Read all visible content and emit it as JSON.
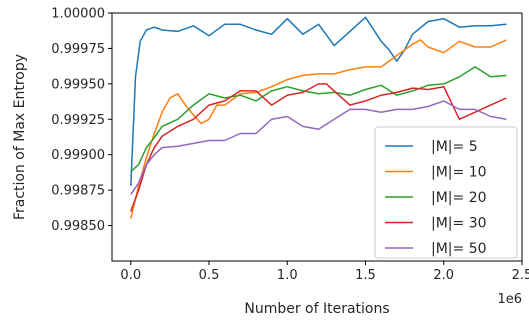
{
  "chart_data": {
    "type": "line",
    "title": "",
    "xlabel": "Number of Iterations",
    "ylabel": "Fraction of Max Entropy",
    "x_offset_label": "1e6",
    "xlim": [
      -0.12,
      2.5
    ],
    "ylim": [
      0.99825,
      1.0
    ],
    "xticks": [
      0.0,
      0.5,
      1.0,
      1.5,
      2.0,
      2.5
    ],
    "xtick_labels": [
      "0.0",
      "0.5",
      "1.0",
      "1.5",
      "2.0",
      "2.5"
    ],
    "yticks": [
      0.9985,
      0.99875,
      0.999,
      0.99925,
      0.9995,
      0.99975,
      1.0
    ],
    "ytick_labels": [
      "0.99850",
      "0.99875",
      "0.99900",
      "0.99925",
      "0.99950",
      "0.99975",
      "1.00000"
    ],
    "grid": false,
    "legend_position": "lower-right",
    "series": [
      {
        "name": "|M|= 5",
        "color": "#1f77b4",
        "x": [
          0.0,
          0.03,
          0.06,
          0.1,
          0.15,
          0.2,
          0.3,
          0.4,
          0.5,
          0.6,
          0.7,
          0.8,
          0.9,
          1.0,
          1.1,
          1.2,
          1.3,
          1.4,
          1.5,
          1.6,
          1.65,
          1.7,
          1.75,
          1.8,
          1.9,
          2.0,
          2.1,
          2.2,
          2.3,
          2.4
        ],
        "y": [
          0.99878,
          0.99955,
          0.9998,
          0.99988,
          0.9999,
          0.99988,
          0.99987,
          0.99991,
          0.99984,
          0.99992,
          0.99992,
          0.99988,
          0.99985,
          0.99996,
          0.99985,
          0.99992,
          0.99977,
          0.99987,
          0.99997,
          0.9998,
          0.99974,
          0.99966,
          0.99974,
          0.99985,
          0.99994,
          0.99996,
          0.9999,
          0.99991,
          0.99991,
          0.99992
        ]
      },
      {
        "name": "|M|= 10",
        "color": "#ff7f0e",
        "x": [
          0.0,
          0.05,
          0.1,
          0.15,
          0.2,
          0.25,
          0.3,
          0.35,
          0.4,
          0.45,
          0.5,
          0.55,
          0.6,
          0.7,
          0.8,
          0.9,
          1.0,
          1.1,
          1.2,
          1.3,
          1.4,
          1.5,
          1.6,
          1.7,
          1.8,
          1.85,
          1.9,
          2.0,
          2.1,
          2.2,
          2.3,
          2.4
        ],
        "y": [
          0.99855,
          0.99878,
          0.99898,
          0.99915,
          0.9993,
          0.9994,
          0.99943,
          0.99935,
          0.99928,
          0.99922,
          0.99925,
          0.99935,
          0.99935,
          0.99943,
          0.99944,
          0.99948,
          0.99953,
          0.99956,
          0.99957,
          0.99957,
          0.9996,
          0.99962,
          0.99962,
          0.9997,
          0.99978,
          0.99981,
          0.99976,
          0.99972,
          0.9998,
          0.99976,
          0.99976,
          0.99981
        ]
      },
      {
        "name": "|M|= 20",
        "color": "#2ca02c",
        "x": [
          0.0,
          0.05,
          0.1,
          0.15,
          0.2,
          0.3,
          0.4,
          0.5,
          0.6,
          0.7,
          0.8,
          0.9,
          1.0,
          1.1,
          1.2,
          1.3,
          1.4,
          1.5,
          1.6,
          1.7,
          1.8,
          1.9,
          2.0,
          2.1,
          2.2,
          2.3,
          2.4
        ],
        "y": [
          0.99888,
          0.99893,
          0.99905,
          0.99912,
          0.9992,
          0.99925,
          0.99935,
          0.99943,
          0.9994,
          0.99942,
          0.99938,
          0.99945,
          0.99948,
          0.99945,
          0.99943,
          0.99944,
          0.99942,
          0.99946,
          0.99949,
          0.99942,
          0.99945,
          0.99949,
          0.9995,
          0.99955,
          0.99962,
          0.99955,
          0.99956
        ]
      },
      {
        "name": "|M|= 30",
        "color": "#d62728",
        "x": [
          0.0,
          0.05,
          0.1,
          0.15,
          0.2,
          0.3,
          0.4,
          0.5,
          0.6,
          0.7,
          0.8,
          0.9,
          1.0,
          1.1,
          1.2,
          1.25,
          1.3,
          1.4,
          1.5,
          1.6,
          1.7,
          1.8,
          1.9,
          2.0,
          2.1,
          2.2,
          2.3,
          2.4
        ],
        "y": [
          0.9986,
          0.99875,
          0.99893,
          0.99905,
          0.99913,
          0.9992,
          0.99925,
          0.99935,
          0.99938,
          0.99945,
          0.99945,
          0.99935,
          0.99942,
          0.99944,
          0.9995,
          0.9995,
          0.99945,
          0.99935,
          0.99938,
          0.99942,
          0.99944,
          0.99947,
          0.99946,
          0.99948,
          0.99925,
          0.9993,
          0.99935,
          0.9994
        ]
      },
      {
        "name": "|M|= 50",
        "color": "#9467bd",
        "x": [
          0.0,
          0.05,
          0.1,
          0.15,
          0.2,
          0.3,
          0.4,
          0.5,
          0.6,
          0.7,
          0.8,
          0.9,
          1.0,
          1.1,
          1.2,
          1.3,
          1.4,
          1.5,
          1.6,
          1.7,
          1.8,
          1.9,
          2.0,
          2.1,
          2.2,
          2.3,
          2.4
        ],
        "y": [
          0.99872,
          0.9988,
          0.99893,
          0.999,
          0.99905,
          0.99906,
          0.99908,
          0.9991,
          0.9991,
          0.99915,
          0.99915,
          0.99925,
          0.99927,
          0.9992,
          0.99918,
          0.99925,
          0.99932,
          0.99932,
          0.9993,
          0.99932,
          0.99932,
          0.99934,
          0.99938,
          0.99932,
          0.99932,
          0.99927,
          0.99925
        ]
      }
    ]
  }
}
